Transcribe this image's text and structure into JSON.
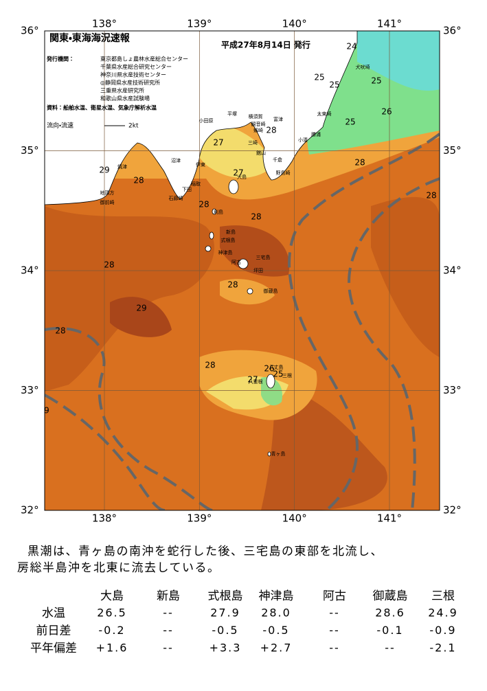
{
  "map": {
    "title": "関東・東海海況速報",
    "date": "平成27年8月14日 発行",
    "issuer_label": "発行機関：",
    "issuers": [
      "東京都島しょ農林水産総合センター",
      "千葉県水産総合研究センター",
      "神奈川県水産技術センター",
      "◎静岡県水産技術研究所",
      "三重県水産研究所",
      "和歌山県水産試験場"
    ],
    "sources": "資料：船舶水温、衛星水温、気象庁解析水温",
    "flow_label": "流向・流速",
    "flow_scale": "2kt",
    "lon_ticks": [
      {
        "value": 138,
        "label": "138°"
      },
      {
        "value": 139,
        "label": "139°"
      },
      {
        "value": 140,
        "label": "140°"
      },
      {
        "value": 141,
        "label": "141°"
      }
    ],
    "lat_ticks": [
      {
        "value": 36,
        "label": "36°"
      },
      {
        "value": 35,
        "label": "35°"
      },
      {
        "value": 34,
        "label": "34°"
      },
      {
        "value": 33,
        "label": "33°"
      },
      {
        "value": 32,
        "label": "32°"
      }
    ],
    "contour_labels": [
      "24",
      "25",
      "25",
      "25",
      "26",
      "25",
      "28",
      "27",
      "27",
      "29",
      "28",
      "28",
      "28",
      "28",
      "28",
      "28",
      "28",
      "29",
      "28",
      "28",
      "26",
      "27",
      "25",
      "9"
    ],
    "places": [
      "平塚",
      "横須賀",
      "小田原",
      "観音崎",
      "富津",
      "剱崎",
      "三崎",
      "館山",
      "千倉",
      "野島崎",
      "小湊",
      "勝浦",
      "太東崎",
      "犬吠埼",
      "焼津",
      "沼津",
      "伊東",
      "稲取",
      "下田",
      "石廊崎",
      "地頭方",
      "御前崎",
      "大島",
      "利島",
      "新島",
      "式根島",
      "神津島",
      "三宅島",
      "阿古",
      "坪田",
      "御蔵島",
      "八丈島",
      "三根",
      "八重根",
      "青ヶ島"
    ]
  },
  "commentary": [
    "黒潮は、青ヶ島の南沖を蛇行した後、三宅島の東部を北流し、",
    "房総半島沖を北東に流去している。"
  ],
  "table": {
    "columns": [
      "大島",
      "新島",
      "式根島",
      "神津島",
      "阿古",
      "御蔵島",
      "三根"
    ],
    "rows": [
      {
        "label": "水温",
        "cells": [
          "26.5",
          "--",
          "27.9",
          "28.0",
          "--",
          "28.6",
          "24.9"
        ]
      },
      {
        "label": "前日差",
        "cells": [
          "-0.2",
          "--",
          "-0.5",
          "-0.5",
          "--",
          "-0.1",
          "-0.9"
        ]
      },
      {
        "label": "平年偏差",
        "cells": [
          "+1.6",
          "--",
          "+3.3",
          "+2.7",
          "--",
          "--",
          "-2.1"
        ]
      }
    ]
  }
}
